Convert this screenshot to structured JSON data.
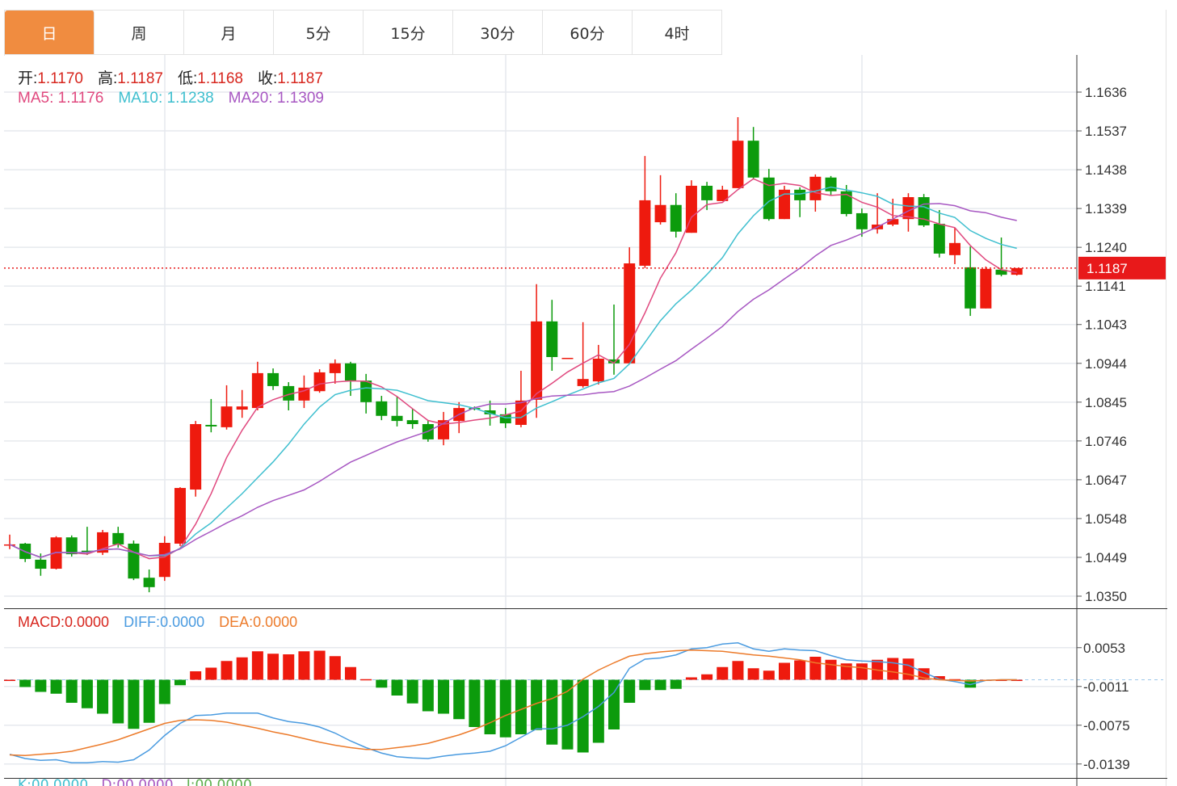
{
  "tabs": [
    {
      "label": "日",
      "active": true
    },
    {
      "label": "周",
      "active": false
    },
    {
      "label": "月",
      "active": false
    },
    {
      "label": "5分",
      "active": false
    },
    {
      "label": "15分",
      "active": false
    },
    {
      "label": "30分",
      "active": false
    },
    {
      "label": "60分",
      "active": false
    },
    {
      "label": "4时",
      "active": false
    }
  ],
  "ohlc_header": {
    "open_label": "开:",
    "open": "1.1170",
    "high_label": "高:",
    "high": "1.1187",
    "low_label": "低:",
    "low": "1.1168",
    "close_label": "收:",
    "close": "1.1187"
  },
  "ma_header": {
    "ma5_label": "MA5:",
    "ma5": "1.1176",
    "ma10_label": "MA10:",
    "ma10": "1.1238",
    "ma20_label": "MA20:",
    "ma20": "1.1309"
  },
  "macd_header": {
    "macd_label": "MACD:",
    "macd": "0.0000",
    "diff_label": "DIFF:",
    "diff": "0.0000",
    "dea_label": "DEA:",
    "dea": "0.0000"
  },
  "kdj_header": {
    "k": "K:00.0000",
    "d": "D:00.0000",
    "j": "J:00.0000"
  },
  "colors": {
    "up": "#EE1A0E",
    "down": "#0C9B0C",
    "active_tab": "#F08C40",
    "ma5": "#E0497F",
    "ma10": "#3FBFCF",
    "ma20": "#A757C2",
    "diff": "#4A9BE0",
    "dea": "#EC7B2B",
    "last_price": "#E8191A"
  },
  "chart_data": [
    {
      "type": "candlestick",
      "y_ticks": [
        "1.1636",
        "1.1537",
        "1.1438",
        "1.1339",
        "1.1240",
        "1.1141",
        "1.1043",
        "1.0944",
        "1.0845",
        "1.0746",
        "1.0647",
        "1.0548",
        "1.0449",
        "1.0350"
      ],
      "ylim": [
        1.035,
        1.1636
      ],
      "last_price": "1.1187",
      "grid": true,
      "ohlc": [
        [
          1.0482,
          1.0507,
          1.047,
          1.0482
        ],
        [
          1.0484,
          1.0486,
          1.0437,
          1.0445
        ],
        [
          1.0443,
          1.0459,
          1.0402,
          1.042
        ],
        [
          1.042,
          1.0503,
          1.0418,
          1.05
        ],
        [
          1.05,
          1.0505,
          1.0451,
          1.0457
        ],
        [
          1.0466,
          1.0527,
          1.0455,
          1.0465
        ],
        [
          1.0461,
          1.0519,
          1.0455,
          1.0513
        ],
        [
          1.0511,
          1.0527,
          1.0474,
          1.0482
        ],
        [
          1.0484,
          1.0492,
          1.0391,
          1.0395
        ],
        [
          1.0397,
          1.0418,
          1.036,
          1.0373
        ],
        [
          1.0399,
          1.0503,
          1.0389,
          1.0486
        ],
        [
          1.0484,
          1.0628,
          1.0478,
          1.0626
        ],
        [
          1.0622,
          1.0797,
          1.0604,
          1.0789
        ],
        [
          1.0787,
          1.0853,
          1.0768,
          1.0783
        ],
        [
          1.0781,
          1.0888,
          1.0775,
          1.0834
        ],
        [
          1.0826,
          1.0876,
          1.0805,
          1.0834
        ],
        [
          1.083,
          1.0948,
          1.0824,
          1.0919
        ],
        [
          1.0919,
          1.0931,
          1.0876,
          1.0886
        ],
        [
          1.0886,
          1.0896,
          1.0824,
          1.0849
        ],
        [
          1.0849,
          1.0913,
          1.083,
          1.0882
        ],
        [
          1.0873,
          1.0929,
          1.0869,
          1.0921
        ],
        [
          1.0919,
          1.0954,
          1.0892,
          1.0944
        ],
        [
          1.0944,
          1.0948,
          1.0861,
          1.09
        ],
        [
          1.09,
          1.0917,
          1.0816,
          1.0845
        ],
        [
          1.0847,
          1.0861,
          1.0799,
          1.081
        ],
        [
          1.081,
          1.0859,
          1.0783,
          1.0797
        ],
        [
          1.0799,
          1.0828,
          1.0777,
          1.0789
        ],
        [
          1.0789,
          1.0799,
          1.0744,
          1.075
        ],
        [
          1.075,
          1.082,
          1.0735,
          1.0799
        ],
        [
          1.0797,
          1.0845,
          1.0766,
          1.083
        ],
        [
          1.083,
          1.0834,
          1.0824,
          1.0828
        ],
        [
          1.0824,
          1.0849,
          1.0785,
          1.0814
        ],
        [
          1.0814,
          1.083,
          1.0779,
          1.0791
        ],
        [
          1.0787,
          1.0925,
          1.0781,
          1.0849
        ],
        [
          1.0851,
          1.1146,
          1.0805,
          1.1051
        ],
        [
          1.1051,
          1.1106,
          1.0925,
          1.096
        ],
        [
          1.0958,
          1.0958,
          1.0958,
          1.0958
        ],
        [
          1.0886,
          1.1049,
          1.0882,
          1.0904
        ],
        [
          1.0898,
          1.0991,
          1.089,
          1.0956
        ],
        [
          1.0954,
          1.1094,
          1.0915,
          1.0944
        ],
        [
          1.0944,
          1.124,
          1.0944,
          1.1199
        ],
        [
          1.1193,
          1.1473,
          1.1187,
          1.136
        ],
        [
          1.1304,
          1.1424,
          1.1298,
          1.1348
        ],
        [
          1.1348,
          1.1378,
          1.1265,
          1.128
        ],
        [
          1.1277,
          1.1411,
          1.1277,
          1.1397
        ],
        [
          1.1397,
          1.1407,
          1.1335,
          1.136
        ],
        [
          1.1358,
          1.1397,
          1.1358,
          1.1387
        ],
        [
          1.1391,
          1.1572,
          1.1391,
          1.1512
        ],
        [
          1.1512,
          1.1547,
          1.1413,
          1.1418
        ],
        [
          1.1418,
          1.144,
          1.1308,
          1.1312
        ],
        [
          1.1312,
          1.1397,
          1.1312,
          1.1387
        ],
        [
          1.1387,
          1.1393,
          1.1317,
          1.136
        ],
        [
          1.136,
          1.1426,
          1.1331,
          1.142
        ],
        [
          1.1418,
          1.1422,
          1.1372,
          1.1383
        ],
        [
          1.1383,
          1.1399,
          1.1319,
          1.1325
        ],
        [
          1.1327,
          1.1339,
          1.1267,
          1.1286
        ],
        [
          1.1286,
          1.1378,
          1.1275,
          1.1298
        ],
        [
          1.1298,
          1.1364,
          1.1294,
          1.1312
        ],
        [
          1.1312,
          1.1378,
          1.128,
          1.1368
        ],
        [
          1.1368,
          1.1376,
          1.1292,
          1.1296
        ],
        [
          1.13,
          1.1335,
          1.1214,
          1.1224
        ],
        [
          1.122,
          1.129,
          1.1197,
          1.1251
        ],
        [
          1.1189,
          1.1242,
          1.1065,
          1.1084
        ],
        [
          1.1084,
          1.1191,
          1.1084,
          1.1185
        ],
        [
          1.1183,
          1.1265,
          1.1166,
          1.117
        ],
        [
          1.117,
          1.1187,
          1.1168,
          1.1187
        ]
      ],
      "moving_averages": [
        5,
        10,
        20
      ]
    },
    {
      "type": "macd",
      "y_ticks": [
        "0.0053",
        "-0.0011",
        "-0.0075",
        "-0.0139"
      ],
      "macd": [
        0.0,
        -0.0012,
        -0.002,
        -0.0023,
        -0.0038,
        -0.0047,
        -0.0056,
        -0.0072,
        -0.0081,
        -0.0071,
        -0.004,
        -0.0009,
        0.0014,
        0.002,
        0.0031,
        0.0037,
        0.0047,
        0.0043,
        0.0042,
        0.0047,
        0.0048,
        0.0039,
        0.0021,
        0.0001,
        -0.0013,
        -0.0026,
        -0.0039,
        -0.0052,
        -0.0056,
        -0.0065,
        -0.0078,
        -0.009,
        -0.0095,
        -0.009,
        -0.0083,
        -0.0107,
        -0.0115,
        -0.012,
        -0.0104,
        -0.0082,
        -0.0038,
        -0.0017,
        -0.0017,
        -0.0015,
        0.0004,
        0.0009,
        0.0021,
        0.0031,
        0.0019,
        0.0015,
        0.0028,
        0.0032,
        0.0038,
        0.0033,
        0.0027,
        0.0027,
        0.0033,
        0.0036,
        0.0035,
        0.0019,
        0.0006,
        0.0001,
        -0.0013,
        0.0,
        0.0,
        0.0
      ],
      "diff": [
        -0.0123,
        -0.013,
        -0.0133,
        -0.0132,
        -0.0137,
        -0.0137,
        -0.0135,
        -0.0136,
        -0.0132,
        -0.0116,
        -0.0092,
        -0.0072,
        -0.0059,
        -0.0058,
        -0.0055,
        -0.0055,
        -0.0055,
        -0.0063,
        -0.0069,
        -0.0072,
        -0.0078,
        -0.0088,
        -0.0101,
        -0.0112,
        -0.0121,
        -0.0127,
        -0.0129,
        -0.013,
        -0.0126,
        -0.0123,
        -0.0121,
        -0.0118,
        -0.0109,
        -0.0095,
        -0.0081,
        -0.0081,
        -0.0075,
        -0.0061,
        -0.0044,
        -0.0021,
        0.0019,
        0.0034,
        0.0036,
        0.0041,
        0.0051,
        0.0053,
        0.0059,
        0.0061,
        0.0051,
        0.0047,
        0.0051,
        0.0049,
        0.0048,
        0.004,
        0.0033,
        0.0031,
        0.003,
        0.0028,
        0.0024,
        0.0012,
        0.0001,
        -0.0003,
        -0.0008,
        -0.0001,
        0.0,
        0.0
      ],
      "dea": [
        -0.0124,
        -0.0125,
        -0.0123,
        -0.0121,
        -0.0118,
        -0.0112,
        -0.0106,
        -0.0099,
        -0.009,
        -0.0081,
        -0.0072,
        -0.0067,
        -0.0066,
        -0.0067,
        -0.007,
        -0.0075,
        -0.008,
        -0.0086,
        -0.0091,
        -0.0097,
        -0.0103,
        -0.0108,
        -0.0112,
        -0.0115,
        -0.0115,
        -0.0112,
        -0.0109,
        -0.0105,
        -0.0098,
        -0.0091,
        -0.0082,
        -0.0071,
        -0.0059,
        -0.0049,
        -0.0039,
        -0.0031,
        -0.0019,
        0.0001,
        0.0016,
        0.0028,
        0.0039,
        0.0043,
        0.0046,
        0.0048,
        0.0049,
        0.0048,
        0.0047,
        0.0044,
        0.0041,
        0.0039,
        0.0036,
        0.0033,
        0.0028,
        0.0025,
        0.0022,
        0.002,
        0.0016,
        0.0013,
        0.0009,
        0.0003,
        0.0,
        -0.0001,
        -0.0002,
        -0.0001,
        0.0,
        0.0
      ]
    }
  ]
}
